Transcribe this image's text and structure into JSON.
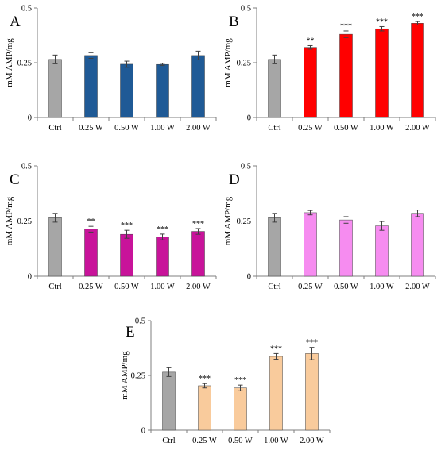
{
  "chart_data": [
    {
      "panel": "A",
      "type": "bar",
      "ylabel": "mM AMP/mg",
      "ylim": [
        0,
        0.5
      ],
      "yticks": [
        "0",
        "0.25",
        "0.5"
      ],
      "categories": [
        "Ctrl",
        "0.25 W",
        "0.50 W",
        "1.00 W",
        "2.00 W"
      ],
      "values": [
        0.265,
        0.283,
        0.243,
        0.242,
        0.283
      ],
      "errors": [
        0.02,
        0.013,
        0.014,
        0.005,
        0.02
      ],
      "significance": [
        "",
        "",
        "",
        "",
        ""
      ],
      "bar_colors": [
        "#a6a6a6",
        "#1f5a96",
        "#1f5a96",
        "#1f5a96",
        "#1f5a96"
      ]
    },
    {
      "panel": "B",
      "type": "bar",
      "ylabel": "mM AMP/mg",
      "ylim": [
        0,
        0.5
      ],
      "yticks": [
        "0",
        "0.25",
        "0.5"
      ],
      "categories": [
        "Ctrl",
        "0.25 W",
        "0.50 W",
        "1.00 W",
        "2.00 W"
      ],
      "values": [
        0.265,
        0.32,
        0.38,
        0.405,
        0.43
      ],
      "errors": [
        0.02,
        0.008,
        0.015,
        0.01,
        0.008
      ],
      "significance": [
        "",
        "**",
        "***",
        "***",
        "***"
      ],
      "bar_colors": [
        "#a6a6a6",
        "#ff0000",
        "#ff0000",
        "#ff0000",
        "#ff0000"
      ]
    },
    {
      "panel": "C",
      "type": "bar",
      "ylabel": "mM AMP/mg",
      "ylim": [
        0,
        0.5
      ],
      "yticks": [
        "0",
        "0.25",
        "0.5"
      ],
      "categories": [
        "Ctrl",
        "0.25 W",
        "0.50 W",
        "1.00 W",
        "2.00 W"
      ],
      "values": [
        0.265,
        0.213,
        0.19,
        0.178,
        0.203
      ],
      "errors": [
        0.02,
        0.013,
        0.018,
        0.013,
        0.013
      ],
      "significance": [
        "",
        "**",
        "***",
        "***",
        "***"
      ],
      "bar_colors": [
        "#a6a6a6",
        "#c8139a",
        "#c8139a",
        "#c8139a",
        "#c8139a"
      ]
    },
    {
      "panel": "D",
      "type": "bar",
      "ylabel": "mM AMP/mg",
      "ylim": [
        0,
        0.5
      ],
      "yticks": [
        "0",
        "0.25",
        "0.5"
      ],
      "categories": [
        "Ctrl",
        "0.25 W",
        "0.50 W",
        "1.00 W",
        "2.00 W"
      ],
      "values": [
        0.265,
        0.288,
        0.255,
        0.228,
        0.285
      ],
      "errors": [
        0.02,
        0.01,
        0.015,
        0.02,
        0.015
      ],
      "significance": [
        "",
        "",
        "",
        "",
        ""
      ],
      "bar_colors": [
        "#a6a6a6",
        "#f68cf0",
        "#f68cf0",
        "#f68cf0",
        "#f68cf0"
      ]
    },
    {
      "panel": "E",
      "type": "bar",
      "ylabel": "mM AMP/mg",
      "ylim": [
        0,
        0.5
      ],
      "yticks": [
        "0",
        "0.25",
        "0.5"
      ],
      "categories": [
        "Ctrl",
        "0.25 W",
        "0.50 W",
        "1.00 W",
        "2.00 W"
      ],
      "values": [
        0.265,
        0.203,
        0.193,
        0.337,
        0.35
      ],
      "errors": [
        0.02,
        0.01,
        0.013,
        0.013,
        0.028
      ],
      "significance": [
        "",
        "***",
        "***",
        "***",
        "***"
      ],
      "bar_colors": [
        "#a6a6a6",
        "#f9cb9c",
        "#f9cb9c",
        "#f9cb9c",
        "#f9cb9c"
      ]
    }
  ],
  "colors": {
    "axis": "#7f7f7f",
    "bar_stroke": "#404040",
    "error_bar": "#404040"
  }
}
